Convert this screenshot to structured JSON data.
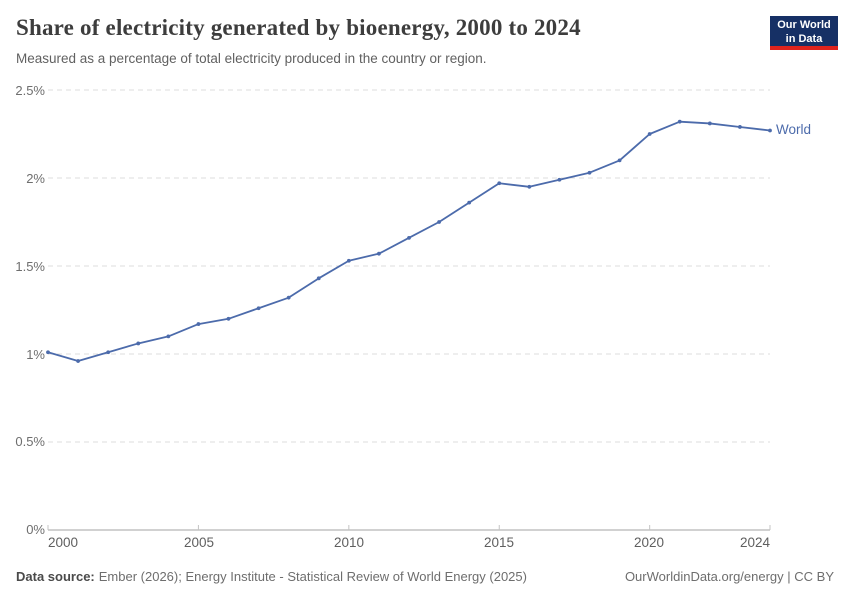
{
  "header": {
    "logo": {
      "line1": "Our World",
      "line2": "in Data"
    }
  },
  "chart_data": {
    "type": "line",
    "title": "Share of electricity generated by bioenergy, 2000 to 2024",
    "subtitle": "Measured as a percentage of total electricity produced in the country or region.",
    "xlabel": "",
    "ylabel": "",
    "xlim": [
      2000,
      2024
    ],
    "ylim": [
      0,
      2.5
    ],
    "grid": "horizontal-dashed",
    "legend": "end-of-line-label",
    "series": [
      {
        "name": "World",
        "color": "#4c6bab",
        "x": [
          2000,
          2001,
          2002,
          2003,
          2004,
          2005,
          2006,
          2007,
          2008,
          2009,
          2010,
          2011,
          2012,
          2013,
          2014,
          2015,
          2016,
          2017,
          2018,
          2019,
          2020,
          2021,
          2022,
          2023,
          2024
        ],
        "values": [
          1.01,
          0.96,
          1.01,
          1.06,
          1.1,
          1.17,
          1.2,
          1.26,
          1.32,
          1.43,
          1.53,
          1.57,
          1.66,
          1.75,
          1.86,
          1.97,
          1.95,
          1.99,
          2.03,
          2.1,
          2.25,
          2.32,
          2.31,
          2.29,
          2.27
        ]
      }
    ],
    "yticks": [
      {
        "value": 0,
        "label": "0%"
      },
      {
        "value": 0.5,
        "label": "0.5%"
      },
      {
        "value": 1,
        "label": "1%"
      },
      {
        "value": 1.5,
        "label": "1.5%"
      },
      {
        "value": 2,
        "label": "2%"
      },
      {
        "value": 2.5,
        "label": "2.5%"
      }
    ],
    "xticks": [
      {
        "value": 2000,
        "label": "2000"
      },
      {
        "value": 2005,
        "label": "2005"
      },
      {
        "value": 2010,
        "label": "2010"
      },
      {
        "value": 2015,
        "label": "2015"
      },
      {
        "value": 2020,
        "label": "2020"
      },
      {
        "value": 2024,
        "label": "2024"
      }
    ]
  },
  "footer": {
    "source_label": "Data source:",
    "source_text": "Ember (2026); Energy Institute - Statistical Review of World Energy (2025)",
    "credit": "OurWorldinData.org/energy | CC BY"
  },
  "colors": {
    "line": "#4c6bab",
    "grid": "#dcdcdc",
    "axis": "#a3a3a3",
    "tick": "#c4c4c4",
    "title": "#3d3d3d",
    "subtitle": "#616161",
    "tick_label": "#6e6e6e",
    "logo_bg": "#163065",
    "logo_bar": "#e0231c"
  }
}
